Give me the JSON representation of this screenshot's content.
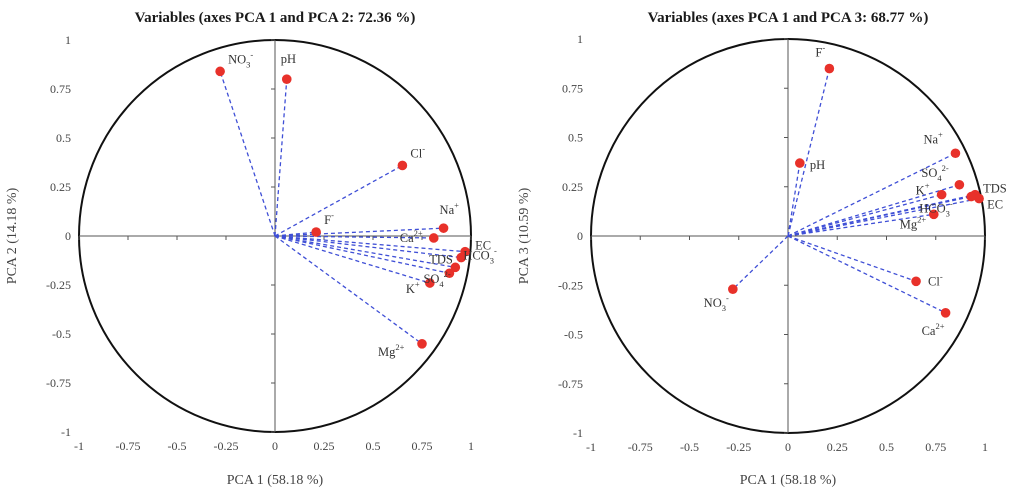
{
  "chart_data": [
    {
      "type": "scatter",
      "subtype": "pca-correlation-circle",
      "title": "Variables (axes PCA 1 and PCA 2: 72.36 %)",
      "xlabel": "PCA 1 (58.18 %)",
      "ylabel": "PCA 2 (14.18 %)",
      "xlim": [
        -1,
        1
      ],
      "ylim": [
        -1,
        1
      ],
      "xticks": [
        "-1",
        "-0.75",
        "-0.5",
        "-0.25",
        "0",
        "0.25",
        "0.5",
        "0.75",
        "1"
      ],
      "yticks": [
        "1",
        "0.75",
        "0.5",
        "0.25",
        "0",
        "-0.25",
        "-0.5",
        "-0.75",
        "-1"
      ],
      "grid": false,
      "point_color": "#e8312a",
      "vector_color": "#3f4fd6",
      "circle_color": "#111111",
      "points": [
        {
          "base": "NO",
          "sub": "3",
          "sup": "-",
          "x": -0.28,
          "y": 0.84
        },
        {
          "base": "pH",
          "sub": "",
          "sup": "",
          "x": 0.06,
          "y": 0.8
        },
        {
          "base": "Cl",
          "sub": "",
          "sup": "-",
          "x": 0.65,
          "y": 0.36
        },
        {
          "base": "F",
          "sub": "",
          "sup": "-",
          "x": 0.21,
          "y": 0.02
        },
        {
          "base": "Na",
          "sub": "",
          "sup": "+",
          "x": 0.86,
          "y": 0.04
        },
        {
          "base": "Ca",
          "sub": "",
          "sup": "2+",
          "x": 0.81,
          "y": -0.01
        },
        {
          "base": "TDS",
          "sub": "",
          "sup": "",
          "x": 0.95,
          "y": -0.11
        },
        {
          "base": "EC",
          "sub": "",
          "sup": "",
          "x": 0.97,
          "y": -0.08
        },
        {
          "base": "HCO",
          "sub": "3",
          "sup": "-",
          "x": 0.92,
          "y": -0.16
        },
        {
          "base": "SO",
          "sub": "4",
          "sup": "2-",
          "x": 0.89,
          "y": -0.19
        },
        {
          "base": "K",
          "sub": "",
          "sup": "+",
          "x": 0.79,
          "y": -0.24
        },
        {
          "base": "Mg",
          "sub": "",
          "sup": "2+",
          "x": 0.75,
          "y": -0.55
        }
      ]
    },
    {
      "type": "scatter",
      "subtype": "pca-correlation-circle",
      "title": "Variables (axes PCA 1 and PCA 3: 68.77 %)",
      "xlabel": "PCA 1 (58.18 %)",
      "ylabel": "PCA 3 (10.59 %)",
      "xlim": [
        -1,
        1
      ],
      "ylim": [
        -1,
        1
      ],
      "xticks": [
        "-1",
        "-0.75",
        "-0.5",
        "-0.25",
        "0",
        "0.25",
        "0.5",
        "0.75",
        "1"
      ],
      "yticks": [
        "1",
        "0.75",
        "0.5",
        "0.25",
        "0",
        "-0.25",
        "-0.5",
        "-0.75",
        "-1"
      ],
      "grid": false,
      "point_color": "#e8312a",
      "vector_color": "#3f4fd6",
      "circle_color": "#111111",
      "points": [
        {
          "base": "F",
          "sub": "",
          "sup": "-",
          "x": 0.21,
          "y": 0.85
        },
        {
          "base": "pH",
          "sub": "",
          "sup": "",
          "x": 0.06,
          "y": 0.37
        },
        {
          "base": "Na",
          "sub": "",
          "sup": "+",
          "x": 0.85,
          "y": 0.42
        },
        {
          "base": "SO",
          "sub": "4",
          "sup": "2-",
          "x": 0.87,
          "y": 0.26
        },
        {
          "base": "TDS",
          "sub": "",
          "sup": "",
          "x": 0.95,
          "y": 0.21
        },
        {
          "base": "K",
          "sub": "",
          "sup": "+",
          "x": 0.78,
          "y": 0.21
        },
        {
          "base": "EC",
          "sub": "",
          "sup": "",
          "x": 0.97,
          "y": 0.19
        },
        {
          "base": "HCO",
          "sub": "3",
          "sup": "-",
          "x": 0.93,
          "y": 0.2
        },
        {
          "base": "Mg",
          "sub": "",
          "sup": "2+",
          "x": 0.74,
          "y": 0.11
        },
        {
          "base": "Cl",
          "sub": "",
          "sup": "-",
          "x": 0.65,
          "y": -0.23
        },
        {
          "base": "Ca",
          "sub": "",
          "sup": "2+",
          "x": 0.8,
          "y": -0.39
        },
        {
          "base": "NO",
          "sub": "3",
          "sup": "-",
          "x": -0.28,
          "y": -0.27
        }
      ]
    }
  ]
}
